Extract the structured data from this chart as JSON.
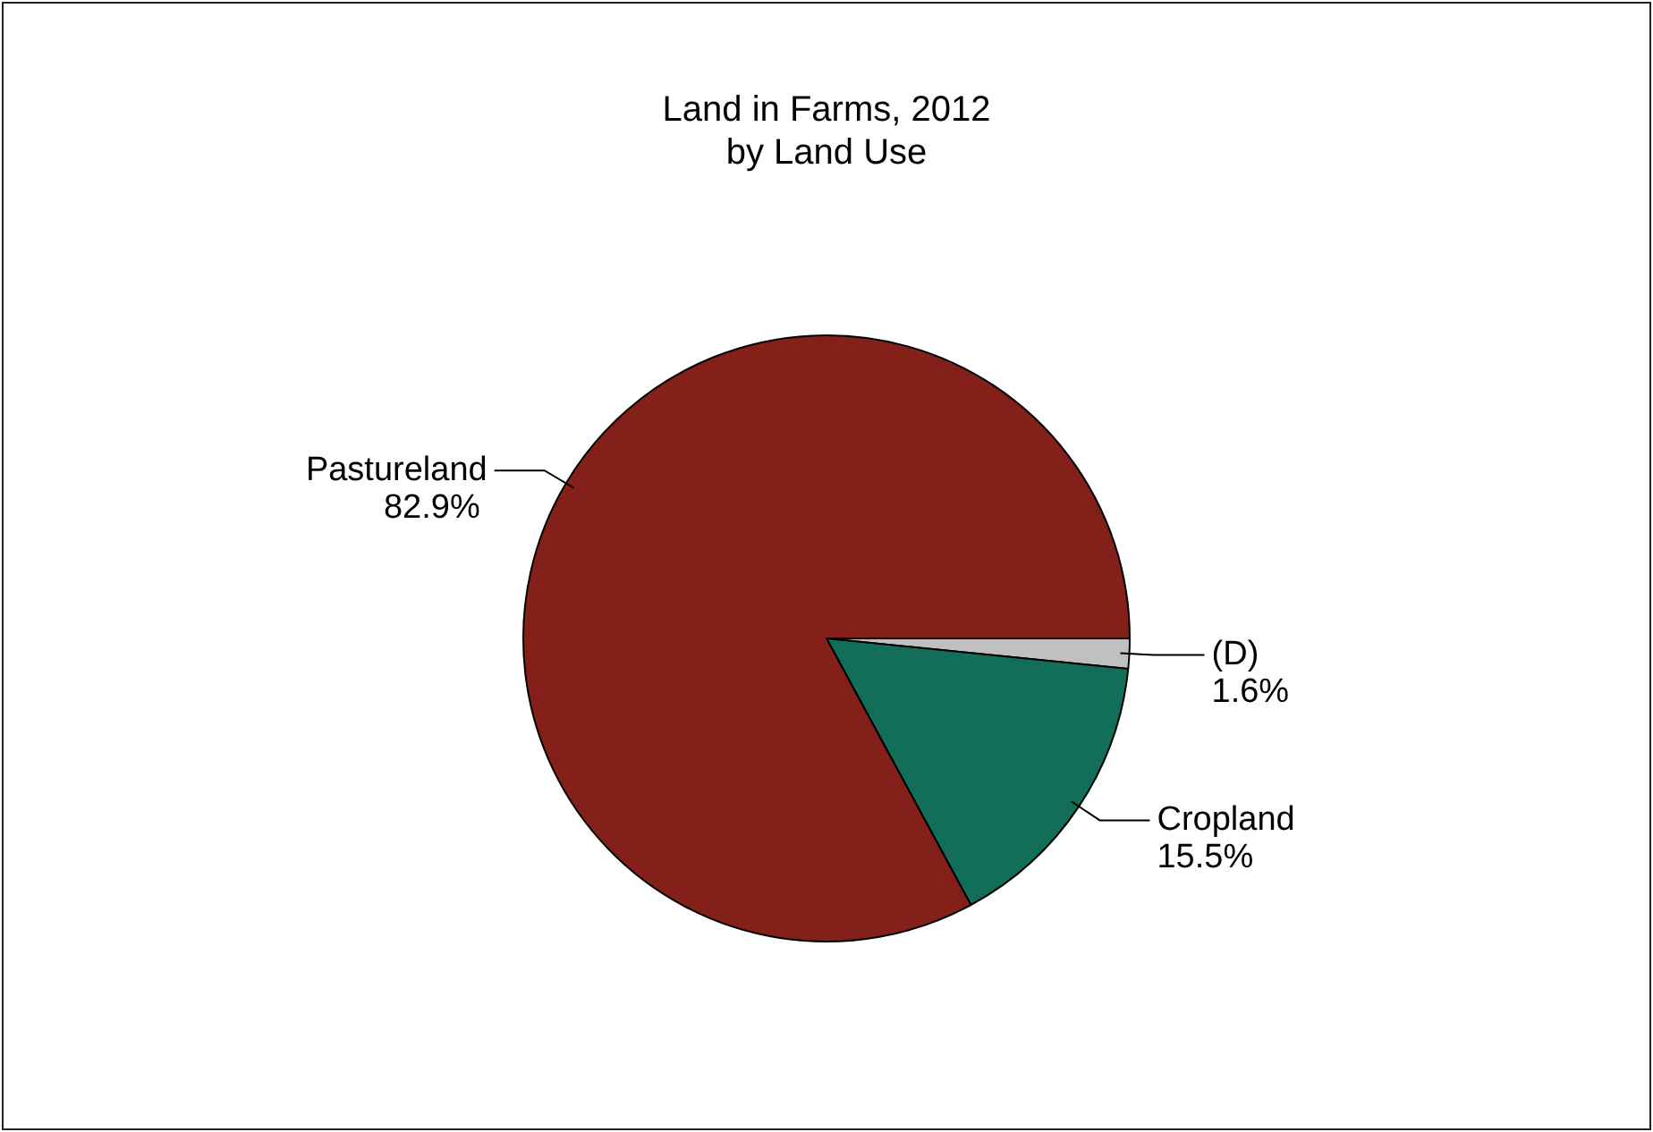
{
  "chart_data": {
    "type": "pie",
    "title": "Land in Farms, 2012",
    "subtitle": "by Land Use",
    "categories": [
      "(D)",
      "Cropland",
      "Pastureland"
    ],
    "values": [
      1.6,
      15.5,
      82.9
    ],
    "colors": [
      "#c0c0c0",
      "#126e59",
      "#84201a"
    ],
    "value_labels": [
      "1.6%",
      "15.5%",
      "82.9%"
    ],
    "legend": false
  }
}
